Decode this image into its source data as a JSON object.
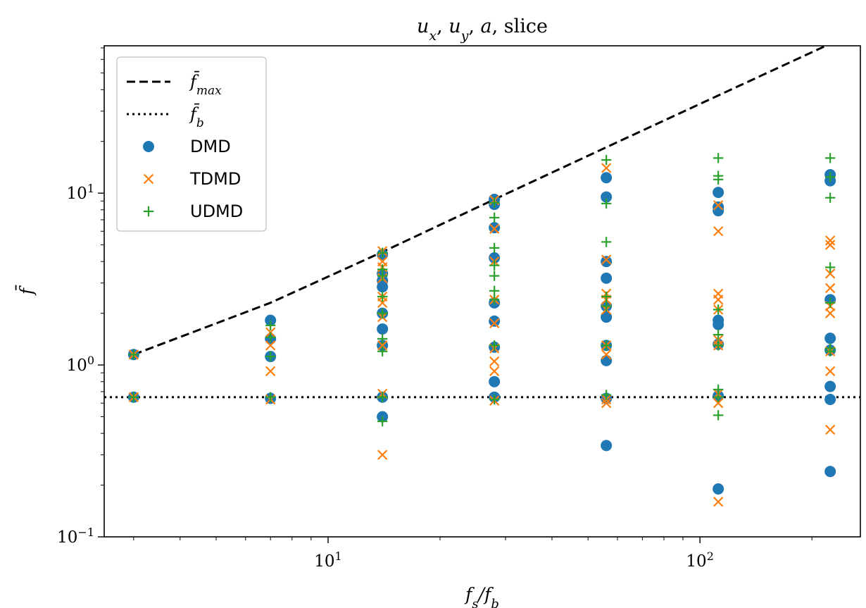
{
  "chart_data": {
    "type": "scatter",
    "title": "u_x, u_y, a, slice",
    "title_parts": [
      {
        "text": "u",
        "italic": true
      },
      {
        "text": "x",
        "italic": true,
        "sub": true
      },
      {
        "text": ", ",
        "italic": false
      },
      {
        "text": "u",
        "italic": true
      },
      {
        "text": "y",
        "italic": true,
        "sub": true
      },
      {
        "text": ", ",
        "italic": false
      },
      {
        "text": "a",
        "italic": true
      },
      {
        "text": ", slice",
        "italic": false
      }
    ],
    "xlabel": "f_s/f_b",
    "ylabel": "f̄",
    "xscale": "log",
    "yscale": "log",
    "xlim": [
      2.5,
      270
    ],
    "ylim": [
      0.1,
      72
    ],
    "xticks": [
      {
        "value": 10,
        "label_base": "10",
        "label_exp": "1"
      },
      {
        "value": 100,
        "label_base": "10",
        "label_exp": "2"
      }
    ],
    "yticks": [
      {
        "value": 0.1,
        "label_base": "10",
        "label_exp": "−1"
      },
      {
        "value": 1,
        "label_base": "10",
        "label_exp": "0"
      },
      {
        "value": 10,
        "label_base": "10",
        "label_exp": "1"
      }
    ],
    "legend_position": "top-left",
    "lines": [
      {
        "name": "f̄_max",
        "name_base": "f̄",
        "name_sub": "max",
        "style": "dashed",
        "color": "#000000",
        "x": [
          3,
          7,
          14,
          28,
          56,
          112,
          224
        ],
        "y": [
          1.15,
          2.3,
          4.55,
          9.2,
          18.5,
          37,
          74
        ]
      },
      {
        "name": "f̄_b",
        "name_base": "f̄",
        "name_sub": "b",
        "style": "dotted",
        "color": "#000000",
        "y_const": 0.65
      }
    ],
    "series": [
      {
        "name": "DMD",
        "marker": "circle",
        "color": "#1f77b4",
        "points": [
          [
            3,
            1.15
          ],
          [
            3,
            0.65
          ],
          [
            7,
            1.82
          ],
          [
            7,
            1.42
          ],
          [
            7,
            1.12
          ],
          [
            7,
            0.64
          ],
          [
            14,
            4.4
          ],
          [
            14,
            3.4
          ],
          [
            14,
            3.1
          ],
          [
            14,
            2.85
          ],
          [
            14,
            2.0
          ],
          [
            14,
            1.62
          ],
          [
            14,
            1.3
          ],
          [
            14,
            0.65
          ],
          [
            14,
            0.5
          ],
          [
            28,
            9.2
          ],
          [
            28,
            8.6
          ],
          [
            28,
            6.3
          ],
          [
            28,
            4.2
          ],
          [
            28,
            2.3
          ],
          [
            28,
            1.8
          ],
          [
            28,
            1.27
          ],
          [
            28,
            0.8
          ],
          [
            28,
            0.65
          ],
          [
            56,
            12.3
          ],
          [
            56,
            9.5
          ],
          [
            56,
            4.0
          ],
          [
            56,
            3.2
          ],
          [
            56,
            2.2
          ],
          [
            56,
            1.9
          ],
          [
            56,
            1.3
          ],
          [
            56,
            1.06
          ],
          [
            56,
            0.64
          ],
          [
            56,
            0.34
          ],
          [
            112,
            10.1
          ],
          [
            112,
            8.3
          ],
          [
            112,
            7.9
          ],
          [
            112,
            1.82
          ],
          [
            112,
            1.72
          ],
          [
            112,
            1.32
          ],
          [
            112,
            0.66
          ],
          [
            112,
            0.19
          ],
          [
            224,
            12.8
          ],
          [
            224,
            11.8
          ],
          [
            224,
            2.4
          ],
          [
            224,
            1.43
          ],
          [
            224,
            1.22
          ],
          [
            224,
            0.75
          ],
          [
            224,
            0.63
          ],
          [
            224,
            0.24
          ]
        ]
      },
      {
        "name": "TDMD",
        "marker": "x",
        "color": "#ff7f0e",
        "points": [
          [
            3,
            1.15
          ],
          [
            3,
            0.65
          ],
          [
            7,
            1.55
          ],
          [
            7,
            1.3
          ],
          [
            7,
            0.92
          ],
          [
            7,
            0.63
          ],
          [
            14,
            4.6
          ],
          [
            14,
            4.0
          ],
          [
            14,
            3.7
          ],
          [
            14,
            3.2
          ],
          [
            14,
            2.5
          ],
          [
            14,
            2.3
          ],
          [
            14,
            1.9
          ],
          [
            14,
            1.3
          ],
          [
            14,
            0.68
          ],
          [
            14,
            0.3
          ],
          [
            28,
            9.1
          ],
          [
            28,
            6.2
          ],
          [
            28,
            4.0
          ],
          [
            28,
            2.4
          ],
          [
            28,
            1.75
          ],
          [
            28,
            1.25
          ],
          [
            28,
            1.05
          ],
          [
            28,
            0.92
          ],
          [
            28,
            0.62
          ],
          [
            56,
            14.0
          ],
          [
            56,
            4.1
          ],
          [
            56,
            2.6
          ],
          [
            56,
            2.4
          ],
          [
            56,
            2.1
          ],
          [
            56,
            1.3
          ],
          [
            56,
            1.15
          ],
          [
            56,
            0.63
          ],
          [
            56,
            0.6
          ],
          [
            112,
            8.5
          ],
          [
            112,
            6.0
          ],
          [
            112,
            2.6
          ],
          [
            112,
            2.4
          ],
          [
            112,
            2.1
          ],
          [
            112,
            1.4
          ],
          [
            112,
            1.3
          ],
          [
            112,
            0.68
          ],
          [
            112,
            0.6
          ],
          [
            112,
            0.16
          ],
          [
            224,
            5.3
          ],
          [
            224,
            5.0
          ],
          [
            224,
            3.4
          ],
          [
            224,
            2.8
          ],
          [
            224,
            2.2
          ],
          [
            224,
            2.0
          ],
          [
            224,
            1.2
          ],
          [
            224,
            0.92
          ],
          [
            224,
            0.42
          ]
        ]
      },
      {
        "name": "UDMD",
        "marker": "plus",
        "color": "#2ca02c",
        "points": [
          [
            3,
            1.15
          ],
          [
            3,
            0.65
          ],
          [
            7,
            1.7
          ],
          [
            7,
            1.45
          ],
          [
            7,
            1.12
          ],
          [
            7,
            0.65
          ],
          [
            14,
            4.5
          ],
          [
            14,
            3.6
          ],
          [
            14,
            3.3
          ],
          [
            14,
            2.5
          ],
          [
            14,
            2.0
          ],
          [
            14,
            1.42
          ],
          [
            14,
            1.2
          ],
          [
            14,
            0.65
          ],
          [
            14,
            0.47
          ],
          [
            28,
            8.8
          ],
          [
            28,
            7.2
          ],
          [
            28,
            4.8
          ],
          [
            28,
            3.8
          ],
          [
            28,
            3.3
          ],
          [
            28,
            2.7
          ],
          [
            28,
            2.4
          ],
          [
            28,
            1.3
          ],
          [
            28,
            0.63
          ],
          [
            56,
            15.6
          ],
          [
            56,
            8.7
          ],
          [
            56,
            5.2
          ],
          [
            56,
            2.5
          ],
          [
            56,
            2.2
          ],
          [
            56,
            1.3
          ],
          [
            56,
            0.67
          ],
          [
            112,
            16.0
          ],
          [
            112,
            12.6
          ],
          [
            112,
            12.0
          ],
          [
            112,
            2.1
          ],
          [
            112,
            1.5
          ],
          [
            112,
            1.3
          ],
          [
            112,
            0.72
          ],
          [
            112,
            0.65
          ],
          [
            112,
            0.51
          ],
          [
            224,
            16.0
          ],
          [
            224,
            12.4
          ],
          [
            224,
            9.4
          ],
          [
            224,
            3.7
          ],
          [
            224,
            2.3
          ],
          [
            224,
            1.25
          ],
          [
            224,
            1.2
          ]
        ]
      }
    ]
  }
}
